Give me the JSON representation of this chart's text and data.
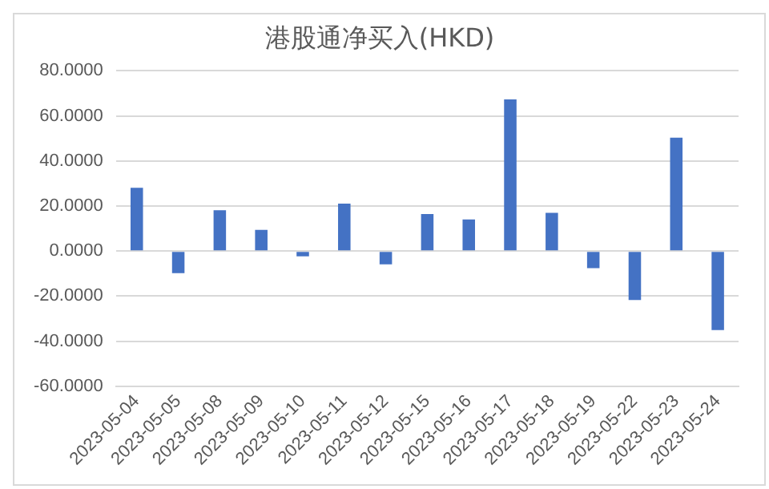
{
  "chart_data": {
    "type": "bar",
    "title": "港股通净买入(HKD)",
    "categories": [
      "2023-05-04",
      "2023-05-05",
      "2023-05-08",
      "2023-05-09",
      "2023-05-10",
      "2023-05-11",
      "2023-05-12",
      "2023-05-15",
      "2023-05-16",
      "2023-05-17",
      "2023-05-18",
      "2023-05-19",
      "2023-05-22",
      "2023-05-23",
      "2023-05-24"
    ],
    "values": [
      28.1,
      -9.8,
      18.1,
      9.4,
      -2.3,
      21.1,
      -5.9,
      16.4,
      14.0,
      67.3,
      17.0,
      -7.6,
      -21.7,
      50.3,
      -35.1
    ],
    "color": "#4472c4",
    "ylim": [
      -60,
      80
    ],
    "yticks": [
      {
        "value": -60,
        "label": "-60.0000"
      },
      {
        "value": -40,
        "label": "-40.0000"
      },
      {
        "value": -20,
        "label": "-20.0000"
      },
      {
        "value": 0,
        "label": "0.0000"
      },
      {
        "value": 20,
        "label": "20.0000"
      },
      {
        "value": 40,
        "label": "40.0000"
      },
      {
        "value": 60,
        "label": "60.0000"
      },
      {
        "value": 80,
        "label": "80.0000"
      }
    ],
    "grid": "y"
  }
}
